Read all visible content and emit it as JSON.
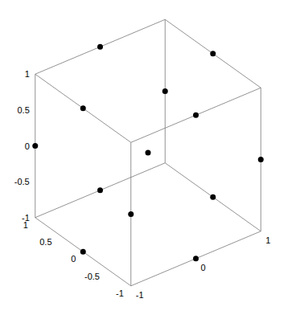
{
  "chart_data": {
    "type": "scatter3d",
    "x": [
      0,
      0,
      0,
      0,
      1,
      -1,
      1,
      -1,
      1,
      1,
      -1,
      -1,
      0
    ],
    "y": [
      1,
      -1,
      1,
      -1,
      0,
      0,
      0,
      0,
      1,
      -1,
      1,
      -1,
      0
    ],
    "z": [
      1,
      1,
      -1,
      -1,
      1,
      1,
      -1,
      -1,
      0,
      0,
      0,
      0,
      0
    ],
    "color": "#000000",
    "marker": "circle",
    "xlim": [
      -1,
      1
    ],
    "ylim": [
      -1,
      1
    ],
    "zlim": [
      -1,
      1
    ],
    "xticks": [
      -1,
      0,
      1
    ],
    "yticks": [
      -1,
      -0.5,
      0,
      0.5,
      1
    ],
    "zticks": [
      -1,
      -0.5,
      0,
      0.5,
      1
    ]
  }
}
